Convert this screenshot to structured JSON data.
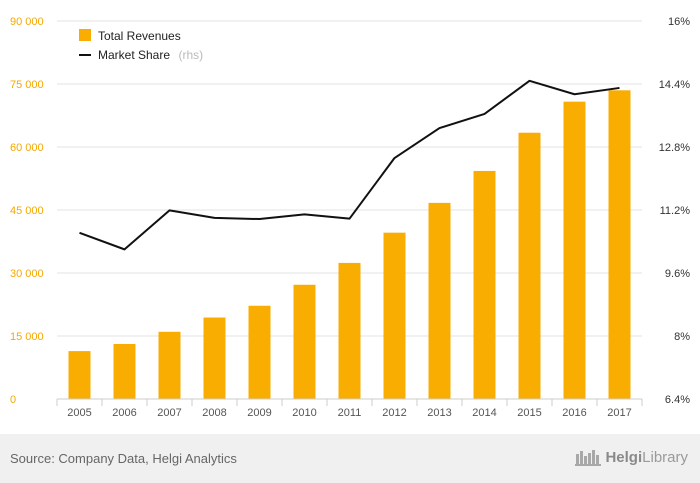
{
  "chart_data": {
    "type": "bar+line",
    "categories": [
      "2005",
      "2006",
      "2007",
      "2008",
      "2009",
      "2010",
      "2011",
      "2012",
      "2013",
      "2014",
      "2015",
      "2016",
      "2017"
    ],
    "series": [
      {
        "name": "Total Revenues",
        "type": "bar",
        "axis": "left",
        "color": "#f8ad00",
        "values": [
          11400,
          13100,
          16000,
          19400,
          22200,
          27200,
          32400,
          39600,
          46700,
          54300,
          63400,
          70800,
          73500
        ]
      },
      {
        "name": "Market Share",
        "name_suffix": "(rhs)",
        "type": "line",
        "axis": "right",
        "color": "#111111",
        "values": [
          10.62,
          10.2,
          11.19,
          11.0,
          10.97,
          11.09,
          10.98,
          12.52,
          13.28,
          13.64,
          14.48,
          14.14,
          14.3
        ]
      }
    ],
    "y_left": {
      "ticks": [
        0,
        15000,
        30000,
        45000,
        60000,
        75000,
        90000
      ],
      "tick_labels": [
        "0",
        "15 000",
        "30 000",
        "45 000",
        "60 000",
        "75 000",
        "90 000"
      ],
      "range": [
        0,
        90000
      ]
    },
    "y_right": {
      "ticks": [
        6.4,
        8.0,
        9.6,
        11.2,
        12.8,
        14.4,
        16.0
      ],
      "tick_labels": [
        "6.4%",
        "8%",
        "9.6%",
        "11.2%",
        "12.8%",
        "14.4%",
        "16%"
      ],
      "range": [
        6.4,
        16.0
      ]
    },
    "grid": true,
    "legend_position": "top-left"
  },
  "footer": {
    "source": "Source: Company Data, Helgi Analytics",
    "brand_prefix": "Helgi",
    "brand_suffix": "Library"
  }
}
